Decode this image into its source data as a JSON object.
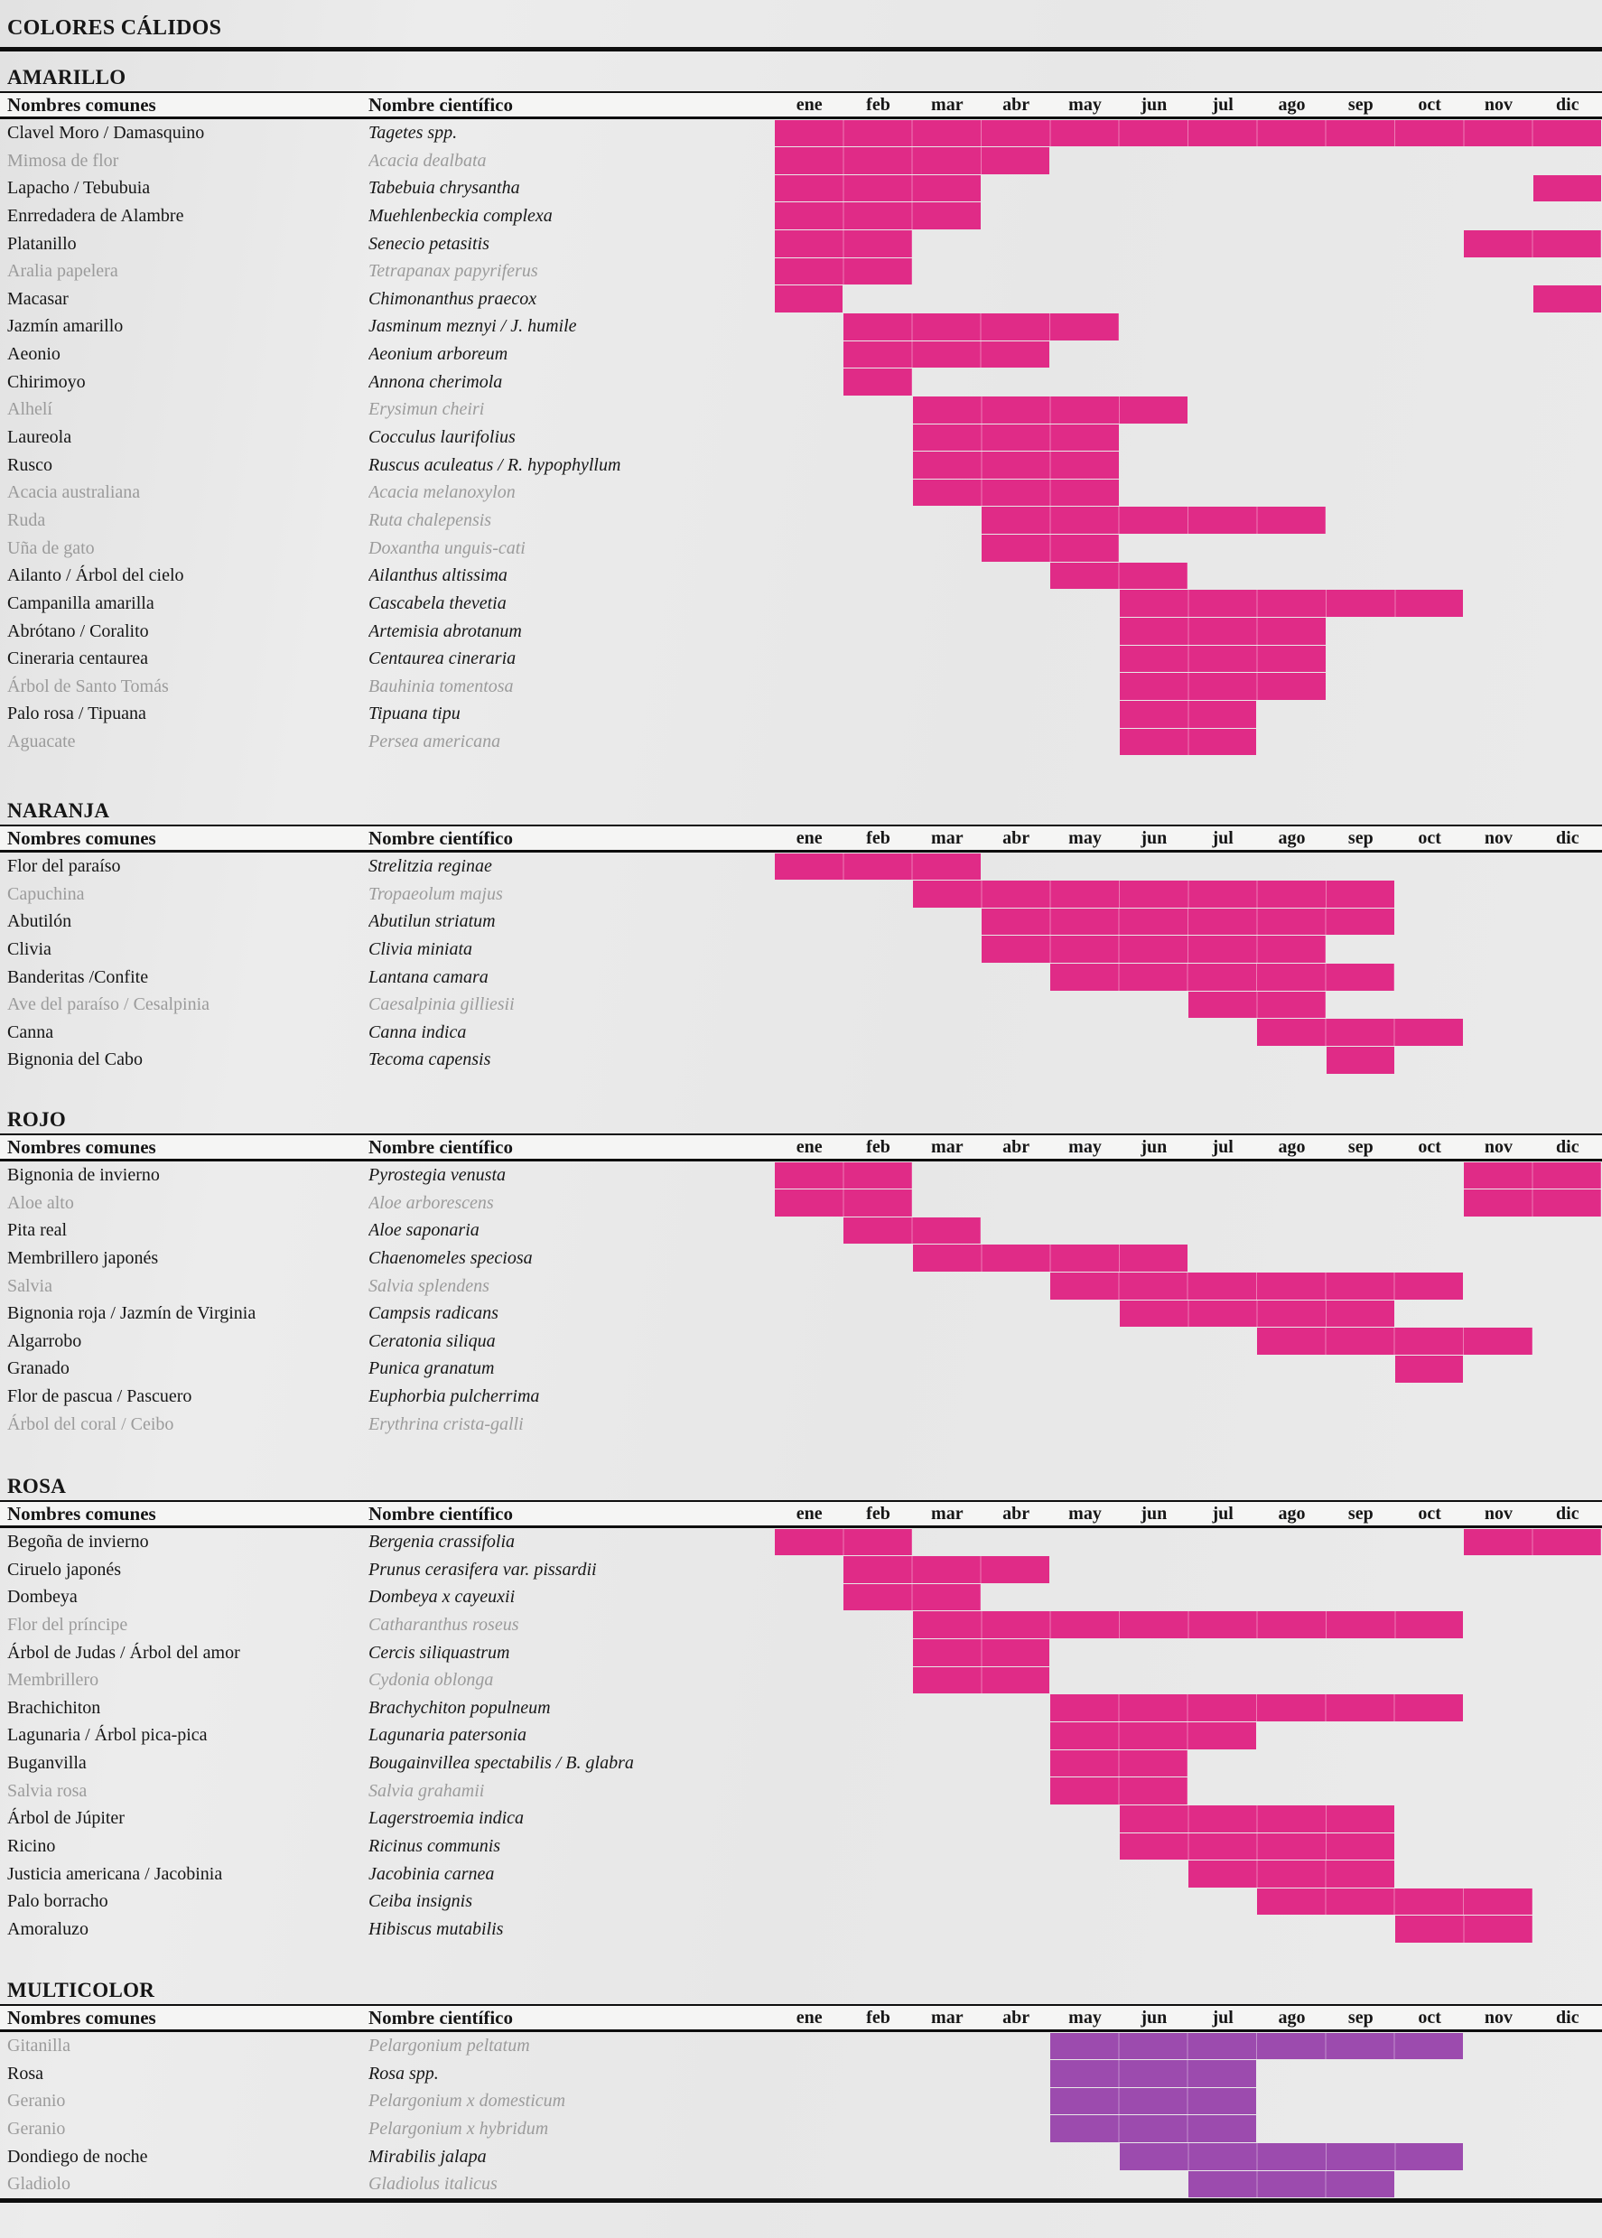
{
  "chart_data": {
    "type": "gantt",
    "title": "COLORES CÁLIDOS",
    "columns": {
      "common": "Nombres comunes",
      "scientific": "Nombre científico"
    },
    "months": [
      "ene",
      "feb",
      "mar",
      "abr",
      "may",
      "jun",
      "jul",
      "ago",
      "sep",
      "oct",
      "nov",
      "dic"
    ],
    "bar_colors": {
      "warm": "#e02b87",
      "multicolor": "#9c4bae"
    },
    "text_colors": {
      "normal": "#161616",
      "muted": "#9b9b9b"
    },
    "sections": [
      {
        "name": "AMARILLO",
        "color": "warm",
        "rows": [
          {
            "common": "Clavel Moro / Damasquino",
            "scientific": "Tagetes spp.",
            "muted": false,
            "months": [
              [
                1,
                12
              ]
            ]
          },
          {
            "common": "Mimosa de flor",
            "scientific": "Acacia dealbata",
            "muted": true,
            "months": [
              [
                1,
                4
              ]
            ]
          },
          {
            "common": "Lapacho / Tebubuia",
            "scientific": "Tabebuia chrysantha",
            "muted": false,
            "months": [
              [
                1,
                3
              ],
              [
                12,
                12
              ]
            ]
          },
          {
            "common": "Enrredadera de Alambre",
            "scientific": "Muehlenbeckia complexa",
            "muted": false,
            "months": [
              [
                1,
                3
              ]
            ]
          },
          {
            "common": "Platanillo",
            "scientific": "Senecio petasitis",
            "muted": false,
            "months": [
              [
                1,
                2
              ],
              [
                11,
                12
              ]
            ]
          },
          {
            "common": "Aralia papelera",
            "scientific": "Tetrapanax papyriferus",
            "muted": true,
            "months": [
              [
                1,
                2
              ]
            ]
          },
          {
            "common": "Macasar",
            "scientific": "Chimonanthus praecox",
            "muted": false,
            "months": [
              [
                1,
                1
              ],
              [
                12,
                12
              ]
            ]
          },
          {
            "common": "Jazmín amarillo",
            "scientific": "Jasminum meznyi / J. humile",
            "muted": false,
            "months": [
              [
                2,
                5
              ]
            ]
          },
          {
            "common": "Aeonio",
            "scientific": "Aeonium arboreum",
            "muted": false,
            "months": [
              [
                2,
                4
              ]
            ]
          },
          {
            "common": "Chirimoyo",
            "scientific": "Annona cherimola",
            "muted": false,
            "months": [
              [
                2,
                2
              ]
            ]
          },
          {
            "common": "Alhelí",
            "scientific": "Erysimun cheiri",
            "muted": true,
            "months": [
              [
                3,
                6
              ]
            ]
          },
          {
            "common": "Laureola",
            "scientific": "Cocculus laurifolius",
            "muted": false,
            "months": [
              [
                3,
                5
              ]
            ]
          },
          {
            "common": "Rusco",
            "scientific": "Ruscus aculeatus / R. hypophyllum",
            "muted": false,
            "months": [
              [
                3,
                5
              ]
            ]
          },
          {
            "common": "Acacia australiana",
            "scientific": "Acacia melanoxylon",
            "muted": true,
            "months": [
              [
                3,
                5
              ]
            ]
          },
          {
            "common": "Ruda",
            "scientific": "Ruta chalepensis",
            "muted": true,
            "months": [
              [
                4,
                8
              ]
            ]
          },
          {
            "common": "Uña de gato",
            "scientific": "Doxantha unguis-cati",
            "muted": true,
            "months": [
              [
                4,
                5
              ]
            ]
          },
          {
            "common": "Ailanto / Árbol del cielo",
            "scientific": "Ailanthus altissima",
            "muted": false,
            "months": [
              [
                5,
                6
              ]
            ]
          },
          {
            "common": "Campanilla amarilla",
            "scientific": "Cascabela thevetia",
            "muted": false,
            "months": [
              [
                6,
                10
              ]
            ]
          },
          {
            "common": "Abrótano / Coralito",
            "scientific": "Artemisia abrotanum",
            "muted": false,
            "months": [
              [
                6,
                8
              ]
            ]
          },
          {
            "common": "Cineraria centaurea",
            "scientific": "Centaurea cineraria",
            "muted": false,
            "months": [
              [
                6,
                8
              ]
            ]
          },
          {
            "common": "Árbol de Santo Tomás",
            "scientific": "Bauhinia tomentosa",
            "muted": true,
            "months": [
              [
                6,
                8
              ]
            ]
          },
          {
            "common": "Palo rosa / Tipuana",
            "scientific": "Tipuana tipu",
            "muted": false,
            "months": [
              [
                6,
                7
              ]
            ]
          },
          {
            "common": "Aguacate",
            "scientific": "Persea americana",
            "muted": true,
            "months": [
              [
                6,
                7
              ]
            ]
          }
        ]
      },
      {
        "name": "NARANJA",
        "color": "warm",
        "rows": [
          {
            "common": "Flor del paraíso",
            "scientific": "Strelitzia reginae",
            "muted": false,
            "months": [
              [
                1,
                3
              ]
            ]
          },
          {
            "common": "Capuchina",
            "scientific": "Tropaeolum majus",
            "muted": true,
            "months": [
              [
                3,
                9
              ]
            ]
          },
          {
            "common": "Abutilón",
            "scientific": "Abutilun striatum",
            "muted": false,
            "months": [
              [
                4,
                9
              ]
            ]
          },
          {
            "common": "Clivia",
            "scientific": "Clivia miniata",
            "muted": false,
            "months": [
              [
                4,
                8
              ]
            ]
          },
          {
            "common": "Banderitas /Confite",
            "scientific": "Lantana camara",
            "muted": false,
            "months": [
              [
                5,
                9
              ]
            ]
          },
          {
            "common": "Ave del paraíso / Cesalpinia",
            "scientific": "Caesalpinia gilliesii",
            "muted": true,
            "months": [
              [
                7,
                8
              ]
            ]
          },
          {
            "common": "Canna",
            "scientific": "Canna indica",
            "muted": false,
            "months": [
              [
                8,
                10
              ]
            ]
          },
          {
            "common": "Bignonia del Cabo",
            "scientific": "Tecoma capensis",
            "muted": false,
            "months": [
              [
                9,
                9
              ]
            ]
          }
        ]
      },
      {
        "name": "ROJO",
        "color": "warm",
        "rows": [
          {
            "common": "Bignonia de invierno",
            "scientific": "Pyrostegia venusta",
            "muted": false,
            "months": [
              [
                1,
                2
              ],
              [
                11,
                12
              ]
            ]
          },
          {
            "common": "Aloe alto",
            "scientific": "Aloe arborescens",
            "muted": true,
            "months": [
              [
                1,
                2
              ],
              [
                11,
                12
              ]
            ]
          },
          {
            "common": "Pita real",
            "scientific": "Aloe saponaria",
            "muted": false,
            "months": [
              [
                2,
                3
              ]
            ]
          },
          {
            "common": "Membrillero japonés",
            "scientific": "Chaenomeles speciosa",
            "muted": false,
            "months": [
              [
                3,
                6
              ]
            ]
          },
          {
            "common": "Salvia",
            "scientific": "Salvia splendens",
            "muted": true,
            "months": [
              [
                5,
                10
              ]
            ]
          },
          {
            "common": "Bignonia roja / Jazmín de Virginia",
            "scientific": "Campsis radicans",
            "muted": false,
            "months": [
              [
                6,
                9
              ]
            ]
          },
          {
            "common": "Algarrobo",
            "scientific": "Ceratonia siliqua",
            "muted": false,
            "months": [
              [
                8,
                11
              ]
            ]
          },
          {
            "common": "Granado",
            "scientific": "Punica granatum",
            "muted": false,
            "months": [
              [
                10,
                10
              ]
            ]
          },
          {
            "common": "Flor de pascua / Pascuero",
            "scientific": "Euphorbia pulcherrima",
            "muted": false,
            "months": []
          },
          {
            "common": "Árbol del coral / Ceibo",
            "scientific": "Erythrina crista-galli",
            "muted": true,
            "months": []
          }
        ]
      },
      {
        "name": "ROSA",
        "color": "warm",
        "rows": [
          {
            "common": "Begoña de invierno",
            "scientific": "Bergenia crassifolia",
            "muted": false,
            "months": [
              [
                1,
                2
              ],
              [
                11,
                12
              ]
            ]
          },
          {
            "common": "Ciruelo japonés",
            "scientific": "Prunus cerasifera var. pissardii",
            "muted": false,
            "months": [
              [
                2,
                4
              ]
            ]
          },
          {
            "common": "Dombeya",
            "scientific": "Dombeya x cayeuxii",
            "muted": false,
            "months": [
              [
                2,
                3
              ]
            ]
          },
          {
            "common": "Flor del príncipe",
            "scientific": "Catharanthus roseus",
            "muted": true,
            "months": [
              [
                3,
                10
              ]
            ]
          },
          {
            "common": "Árbol de Judas / Árbol del amor",
            "scientific": "Cercis siliquastrum",
            "muted": false,
            "months": [
              [
                3,
                4
              ]
            ]
          },
          {
            "common": "Membrillero",
            "scientific": "Cydonia oblonga",
            "muted": true,
            "months": [
              [
                3,
                4
              ]
            ]
          },
          {
            "common": "Brachichiton",
            "scientific": "Brachychiton populneum",
            "muted": false,
            "months": [
              [
                5,
                10
              ]
            ]
          },
          {
            "common": "Lagunaria / Árbol pica-pica",
            "scientific": "Lagunaria patersonia",
            "muted": false,
            "months": [
              [
                5,
                7
              ]
            ]
          },
          {
            "common": "Buganvilla",
            "scientific": "Bougainvillea spectabilis / B. glabra",
            "muted": false,
            "months": [
              [
                5,
                6
              ]
            ]
          },
          {
            "common": "Salvia rosa",
            "scientific": "Salvia grahamii",
            "muted": true,
            "months": [
              [
                5,
                6
              ]
            ]
          },
          {
            "common": "Árbol de Júpiter",
            "scientific": "Lagerstroemia indica",
            "muted": false,
            "months": [
              [
                6,
                9
              ]
            ]
          },
          {
            "common": "Ricino",
            "scientific": "Ricinus communis",
            "muted": false,
            "months": [
              [
                6,
                9
              ]
            ]
          },
          {
            "common": "Justicia americana / Jacobinia",
            "scientific": "Jacobinia carnea",
            "muted": false,
            "months": [
              [
                7,
                9
              ]
            ]
          },
          {
            "common": "Palo borracho",
            "scientific": "Ceiba insignis",
            "muted": false,
            "months": [
              [
                8,
                11
              ]
            ]
          },
          {
            "common": "Amoraluzo",
            "scientific": "Hibiscus mutabilis",
            "muted": false,
            "months": [
              [
                10,
                11
              ]
            ]
          }
        ]
      },
      {
        "name": "MULTICOLOR",
        "color": "multicolor",
        "rows": [
          {
            "common": "Gitanilla",
            "scientific": "Pelargonium peltatum",
            "muted": true,
            "months": [
              [
                5,
                10
              ]
            ]
          },
          {
            "common": "Rosa",
            "scientific": "Rosa spp.",
            "muted": false,
            "months": [
              [
                5,
                7
              ]
            ]
          },
          {
            "common": "Geranio",
            "scientific": "Pelargonium x domesticum",
            "muted": true,
            "months": [
              [
                5,
                7
              ]
            ]
          },
          {
            "common": "Geranio",
            "scientific": "Pelargonium x hybridum",
            "muted": true,
            "months": [
              [
                5,
                7
              ]
            ]
          },
          {
            "common": "Dondiego de noche",
            "scientific": "Mirabilis jalapa",
            "muted": false,
            "months": [
              [
                6,
                10
              ]
            ]
          },
          {
            "common": "Gladiolo",
            "scientific": "Gladiolus italicus",
            "muted": true,
            "months": [
              [
                7,
                9
              ]
            ]
          }
        ]
      }
    ]
  }
}
